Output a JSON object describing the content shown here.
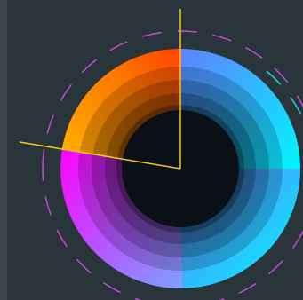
{
  "colors": {
    "background": "#2a343b",
    "scrollbar": "#3b464d",
    "wedge_line": "#f2c81a",
    "dash_magenta": "#c04bd8",
    "dash_cyan": "#38c8d8"
  },
  "color_wheel": {
    "segments": [
      {
        "name": "red-orange-yellow",
        "from": "#ff0000",
        "to": "#ffd400"
      },
      {
        "name": "blue-cyan",
        "from": "#5c7cff",
        "to": "#00f0ff"
      },
      {
        "name": "magenta-violet",
        "from": "#ff00ff",
        "to": "#7b9cff"
      }
    ],
    "rings": 5,
    "selector_angle_deg": 260
  },
  "icons": {
    "wheel": "color-wheel-icon",
    "selector": "hue-selector-icon"
  }
}
